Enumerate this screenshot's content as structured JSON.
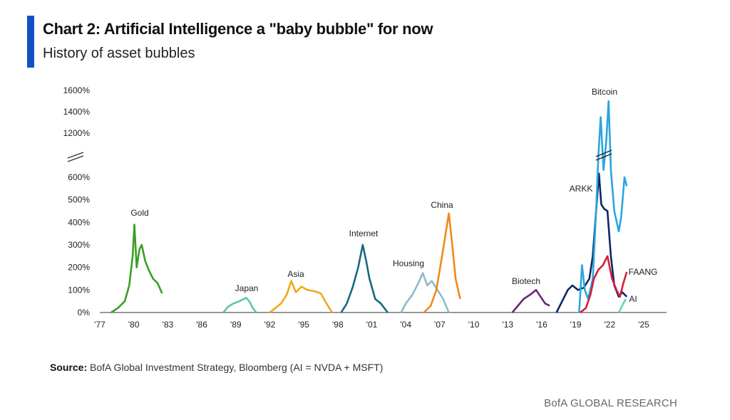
{
  "header": {
    "title": "Chart 2: Artificial Intelligence a \"baby bubble\" for now",
    "subtitle": "History of asset bubbles"
  },
  "footer": {
    "source_label": "Source:",
    "source_text": "BofA Global Investment Strategy, Bloomberg (AI = NVDA + MSFT)",
    "brand": "BofA GLOBAL RESEARCH"
  },
  "chart_data": {
    "type": "line",
    "title": "",
    "xlabel": "",
    "ylabel": "",
    "y_ticks": [
      "0%",
      "100%",
      "200%",
      "300%",
      "400%",
      "500%",
      "600%",
      "1200%",
      "1400%",
      "1600%"
    ],
    "y_tick_values": [
      0,
      100,
      200,
      300,
      400,
      500,
      600,
      1200,
      1400,
      1600
    ],
    "y_axis_break": [
      600,
      1200
    ],
    "x_ticks": [
      "'77",
      "'80",
      "'83",
      "'86",
      "'89",
      "'92",
      "'95",
      "'98",
      "'01",
      "'04",
      "'07",
      "'10",
      "'13",
      "'16",
      "'19",
      "'22",
      "'25"
    ],
    "x_tick_values": [
      1977,
      1980,
      1983,
      1986,
      1989,
      1992,
      1995,
      1998,
      2001,
      2004,
      2007,
      2010,
      2013,
      2016,
      2019,
      2022,
      2025
    ],
    "xlim": [
      1977,
      2025
    ],
    "grid": false,
    "series": [
      {
        "name": "Gold",
        "color": "#3a9f25",
        "points": [
          [
            1978.0,
            0
          ],
          [
            1978.6,
            20
          ],
          [
            1979.2,
            50
          ],
          [
            1979.6,
            120
          ],
          [
            1979.9,
            250
          ],
          [
            1980.05,
            390
          ],
          [
            1980.25,
            200
          ],
          [
            1980.5,
            280
          ],
          [
            1980.7,
            300
          ],
          [
            1981.0,
            230
          ],
          [
            1981.3,
            190
          ],
          [
            1981.7,
            150
          ],
          [
            1982.1,
            130
          ],
          [
            1982.5,
            85
          ]
        ]
      },
      {
        "name": "Japan",
        "color": "#5cc5ad",
        "points": [
          [
            1987.9,
            0
          ],
          [
            1988.3,
            25
          ],
          [
            1988.8,
            40
          ],
          [
            1989.3,
            50
          ],
          [
            1989.9,
            65
          ],
          [
            1990.2,
            50
          ],
          [
            1990.5,
            20
          ],
          [
            1990.8,
            0
          ]
        ]
      },
      {
        "name": "Asia",
        "color": "#eeaa1a",
        "points": [
          [
            1992.0,
            0
          ],
          [
            1992.5,
            20
          ],
          [
            1993.0,
            40
          ],
          [
            1993.5,
            80
          ],
          [
            1993.9,
            140
          ],
          [
            1994.3,
            90
          ],
          [
            1994.8,
            115
          ],
          [
            1995.3,
            100
          ],
          [
            1995.9,
            95
          ],
          [
            1996.5,
            85
          ],
          [
            1997.0,
            40
          ],
          [
            1997.5,
            0
          ]
        ]
      },
      {
        "name": "Internet",
        "color": "#17697a",
        "points": [
          [
            1998.3,
            0
          ],
          [
            1998.8,
            40
          ],
          [
            1999.3,
            110
          ],
          [
            1999.8,
            200
          ],
          [
            2000.2,
            300
          ],
          [
            2000.5,
            230
          ],
          [
            2000.8,
            150
          ],
          [
            2001.3,
            60
          ],
          [
            2001.8,
            40
          ],
          [
            2002.4,
            0
          ]
        ]
      },
      {
        "name": "Housing",
        "color": "#8cbcc6",
        "points": [
          [
            2003.6,
            0
          ],
          [
            2004.0,
            40
          ],
          [
            2004.6,
            80
          ],
          [
            2005.1,
            130
          ],
          [
            2005.5,
            175
          ],
          [
            2005.9,
            120
          ],
          [
            2006.3,
            140
          ],
          [
            2006.8,
            100
          ],
          [
            2007.3,
            60
          ],
          [
            2007.8,
            0
          ]
        ]
      },
      {
        "name": "China",
        "color": "#ee8a1d",
        "points": [
          [
            2005.6,
            0
          ],
          [
            2006.2,
            30
          ],
          [
            2006.7,
            100
          ],
          [
            2007.2,
            250
          ],
          [
            2007.8,
            440
          ],
          [
            2008.1,
            300
          ],
          [
            2008.4,
            150
          ],
          [
            2008.8,
            60
          ]
        ]
      },
      {
        "name": "Biotech",
        "color": "#6a2777",
        "points": [
          [
            2013.4,
            0
          ],
          [
            2013.9,
            30
          ],
          [
            2014.4,
            60
          ],
          [
            2015.0,
            80
          ],
          [
            2015.5,
            100
          ],
          [
            2015.9,
            70
          ],
          [
            2016.3,
            40
          ],
          [
            2016.7,
            30
          ]
        ]
      },
      {
        "name": "ARKK",
        "color": "#0c2769",
        "points": [
          [
            2017.3,
            0
          ],
          [
            2017.8,
            50
          ],
          [
            2018.3,
            100
          ],
          [
            2018.7,
            120
          ],
          [
            2019.2,
            100
          ],
          [
            2019.7,
            110
          ],
          [
            2020.2,
            150
          ],
          [
            2020.5,
            250
          ],
          [
            2020.8,
            450
          ],
          [
            2021.05,
            650
          ],
          [
            2021.25,
            480
          ],
          [
            2021.5,
            460
          ],
          [
            2021.8,
            450
          ],
          [
            2022.1,
            250
          ],
          [
            2022.4,
            120
          ],
          [
            2022.8,
            70
          ],
          [
            2023.1,
            90
          ],
          [
            2023.5,
            70
          ]
        ]
      },
      {
        "name": "Bitcoin",
        "color": "#2aa6df",
        "points": [
          [
            2019.3,
            0
          ],
          [
            2019.55,
            210
          ],
          [
            2019.8,
            100
          ],
          [
            2020.1,
            60
          ],
          [
            2020.5,
            150
          ],
          [
            2020.8,
            450
          ],
          [
            2021.0,
            900
          ],
          [
            2021.2,
            1350
          ],
          [
            2021.45,
            700
          ],
          [
            2021.7,
            1100
          ],
          [
            2021.9,
            1500
          ],
          [
            2022.1,
            700
          ],
          [
            2022.4,
            450
          ],
          [
            2022.8,
            360
          ],
          [
            2023.0,
            420
          ],
          [
            2023.3,
            600
          ],
          [
            2023.5,
            560
          ]
        ]
      },
      {
        "name": "FAANG",
        "color": "#d41f3a",
        "points": [
          [
            2019.4,
            0
          ],
          [
            2019.9,
            20
          ],
          [
            2020.3,
            80
          ],
          [
            2020.6,
            150
          ],
          [
            2021.0,
            190
          ],
          [
            2021.4,
            210
          ],
          [
            2021.8,
            250
          ],
          [
            2022.2,
            150
          ],
          [
            2022.6,
            100
          ],
          [
            2022.9,
            70
          ],
          [
            2023.2,
            130
          ],
          [
            2023.5,
            180
          ]
        ]
      },
      {
        "name": "AI",
        "color": "#6fd4ae",
        "points": [
          [
            2022.8,
            0
          ],
          [
            2023.1,
            30
          ],
          [
            2023.4,
            60
          ]
        ]
      }
    ]
  }
}
